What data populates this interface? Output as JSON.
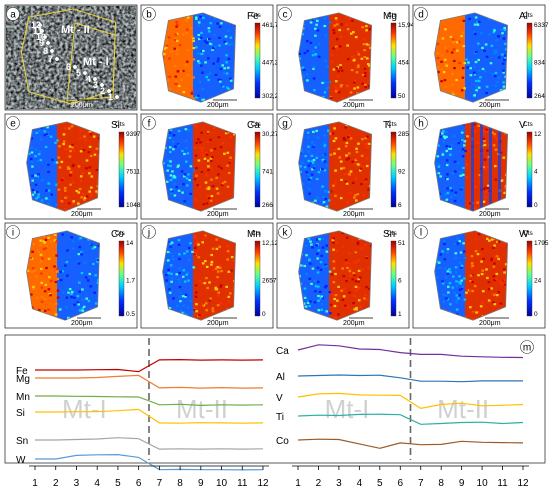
{
  "panels": [
    {
      "letter": "a",
      "element": "",
      "scale": "200μm",
      "cts": "",
      "ticks": []
    },
    {
      "letter": "b",
      "element": "Fe",
      "scale": "200μm",
      "cts": "Cts",
      "ticks": [
        "461,702",
        "447,294",
        "302,201"
      ]
    },
    {
      "letter": "c",
      "element": "Mg",
      "scale": "200μm",
      "cts": "Cts",
      "ticks": [
        "15,949",
        "454",
        "50"
      ]
    },
    {
      "letter": "d",
      "element": "Al",
      "scale": "200μm",
      "cts": "Cts",
      "ticks": [
        "6337",
        "834",
        "264"
      ]
    },
    {
      "letter": "e",
      "element": "Si",
      "scale": "200μm",
      "cts": "Cts",
      "ticks": [
        "93976",
        "7511",
        "1048"
      ]
    },
    {
      "letter": "f",
      "element": "Ca",
      "scale": "200μm",
      "cts": "Cts",
      "ticks": [
        "30,276",
        "741",
        "266"
      ]
    },
    {
      "letter": "g",
      "element": "Ti",
      "scale": "200μm",
      "cts": "Cts",
      "ticks": [
        "285",
        "92",
        "6"
      ]
    },
    {
      "letter": "h",
      "element": "V",
      "scale": "200μm",
      "cts": "Cts",
      "ticks": [
        "12",
        "4",
        "0"
      ]
    },
    {
      "letter": "i",
      "element": "Co",
      "scale": "200μm",
      "cts": "Cts",
      "ticks": [
        "14",
        "1.7",
        "0.5"
      ]
    },
    {
      "letter": "j",
      "element": "Mn",
      "scale": "200μm",
      "cts": "Cts",
      "ticks": [
        "12,121",
        "2657",
        "0"
      ]
    },
    {
      "letter": "k",
      "element": "Sn",
      "scale": "200μm",
      "cts": "Cts",
      "ticks": [
        "51",
        "6",
        "1"
      ]
    },
    {
      "letter": "l",
      "element": "W",
      "scale": "200μm",
      "cts": "Cts",
      "ticks": [
        "1795",
        "24",
        "0"
      ]
    }
  ],
  "photo": {
    "spots": [
      "1",
      "2",
      "3",
      "4",
      "5",
      "6",
      "7",
      "8",
      "9",
      "10",
      "11",
      "12"
    ],
    "zone1": "Mt - I",
    "zone2": "Mt - II"
  },
  "profiles": {
    "panel_letter": "m",
    "x_ticks": [
      "1",
      "2",
      "3",
      "4",
      "5",
      "6",
      "7",
      "8",
      "9",
      "10",
      "11",
      "12"
    ],
    "left": {
      "zone1": "Mt-I",
      "zone2": "Mt-II",
      "series": [
        {
          "name": "Fe",
          "color": "#c00000",
          "values": [
            11.6,
            11.6,
            11.6,
            11.7,
            11.8,
            11.0,
            15.5,
            15.6,
            15.4,
            15.5,
            15.4,
            15.5
          ]
        },
        {
          "name": "Mg",
          "color": "#ed7d31",
          "values": [
            12.8,
            12.8,
            12.8,
            13.0,
            13.4,
            13.8,
            9.0,
            9.2,
            8.9,
            9.1,
            8.9,
            9.0
          ]
        },
        {
          "name": "Mn",
          "color": "#70ad47",
          "values": [
            12.4,
            12.4,
            12.3,
            12.2,
            12.1,
            12.0,
            9.0,
            9.2,
            8.8,
            9.0,
            8.9,
            9.0
          ]
        },
        {
          "name": "Si",
          "color": "#ffc000",
          "values": [
            11.8,
            11.8,
            11.9,
            11.9,
            12.3,
            12.8,
            7.6,
            7.5,
            7.7,
            7.6,
            7.5,
            7.6
          ]
        },
        {
          "name": "Sn",
          "color": "#a5a5a5",
          "values": [
            11.7,
            11.7,
            11.9,
            12.1,
            12.6,
            12.2,
            8.2,
            8.3,
            8.2,
            8.3,
            8.2,
            8.3
          ]
        },
        {
          "name": "W",
          "color": "#5b9bd5",
          "values": [
            12.0,
            12.0,
            13.4,
            13.6,
            13.7,
            12.6,
            7.9,
            8.0,
            7.9,
            7.9,
            7.8,
            7.9
          ]
        }
      ]
    },
    "right": {
      "zone1": "Mt-I",
      "zone2": "Mt-II",
      "series": [
        {
          "name": "Ca",
          "color": "#7030a0",
          "values": [
            12.0,
            14.0,
            13.6,
            12.4,
            12.2,
            11.0,
            10.3,
            10.3,
            9.6,
            9.4,
            9.2,
            9.1
          ]
        },
        {
          "name": "Al",
          "color": "#2e75b6",
          "values": [
            12.0,
            12.2,
            12.4,
            12.2,
            12.3,
            11.3,
            10.0,
            10.0,
            9.8,
            10.1,
            10.1,
            10.1
          ]
        },
        {
          "name": "V",
          "color": "#ffc000",
          "values": [
            12.0,
            13.2,
            13.4,
            12.8,
            12.7,
            12.6,
            7.6,
            9.1,
            9.6,
            8.6,
            8.8,
            9.1
          ]
        },
        {
          "name": "Ti",
          "color": "#2ab0a6",
          "values": [
            12.0,
            12.3,
            12.2,
            12.6,
            12.7,
            12.5,
            8.8,
            9.1,
            9.5,
            9.6,
            9.1,
            9.5
          ]
        },
        {
          "name": "Co",
          "color": "#9c5a2a",
          "values": [
            12.0,
            12.3,
            12.2,
            10.5,
            8.8,
            10.9,
            10.2,
            10.3,
            11.5,
            11.1,
            11.0,
            10.9
          ]
        }
      ]
    }
  },
  "colors": {
    "low": "#0000c8",
    "mid": "#00e0ff",
    "high": "#c80000",
    "frame": "#333333"
  }
}
